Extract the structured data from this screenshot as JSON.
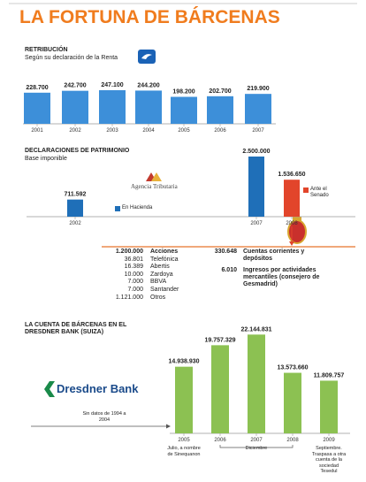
{
  "title": "LA FORTUNA DE BÁRCENAS",
  "chart_data": [
    {
      "type": "bar",
      "title": "RETRIBUCIÓN",
      "subtitle": "Según su declaración de la Renta",
      "categories": [
        "2001",
        "2002",
        "2003",
        "2004",
        "2005",
        "2006",
        "2007"
      ],
      "values": [
        228700,
        242700,
        247100,
        244200,
        198200,
        202700,
        219900
      ],
      "value_labels": [
        "228.700",
        "242.700",
        "247.100",
        "244.200",
        "198.200",
        "202.700",
        "219.900"
      ],
      "color": "#3d8fd9",
      "ylim": [
        0,
        260000
      ]
    },
    {
      "type": "bar",
      "title": "DECLARACIONES DE PATRIMONIO",
      "subtitle": "Base imponible",
      "categories": [
        "2002",
        "2007",
        "2008"
      ],
      "series": [
        {
          "name": "En Hacienda",
          "color": "#1f6fb8",
          "values": [
            711592,
            2500000,
            null
          ],
          "value_labels": [
            "711.592",
            "2.500.000",
            null
          ]
        },
        {
          "name": "Ante el Senado",
          "color": "#e2452b",
          "values": [
            null,
            null,
            1536650
          ],
          "value_labels": [
            null,
            null,
            "1.536.650"
          ]
        }
      ],
      "ylim": [
        0,
        2500000
      ],
      "logo": "Agencia Tributaria"
    },
    {
      "type": "bar",
      "title": "LA CUENTA DE BÁRCENAS EN EL DRESDNER BANK (SUIZA)",
      "categories": [
        "2005",
        "2006",
        "2007",
        "2008",
        "2009"
      ],
      "values": [
        14938930,
        19757329,
        22144831,
        13573660,
        11809757
      ],
      "value_labels": [
        "14.938.930",
        "19.757.329",
        "22.144.831",
        "13.573.660",
        "11.809.757"
      ],
      "category_notes": [
        "Julio, a nombre de Sinequanon",
        null,
        "Diciembre",
        null,
        "Septiembre. Traspasa a otra cuenta de la sociedad Tesedul"
      ],
      "color": "#8cc152",
      "ylim": [
        0,
        23000000
      ],
      "note": "Sin datos de 1994 a 2004",
      "logo": "Dresdner Bank"
    }
  ],
  "holdings": {
    "left": [
      {
        "amount": "1.200.000",
        "item": "Acciones"
      },
      {
        "amount": "36.801",
        "item": "Telefónica"
      },
      {
        "amount": "16.389",
        "item": "Abertis"
      },
      {
        "amount": "10.000",
        "item": "Zardoya"
      },
      {
        "amount": "7.000",
        "item": "BBVA"
      },
      {
        "amount": "7.000",
        "item": "Santander"
      },
      {
        "amount": "1.121.000",
        "item": "Otros"
      }
    ],
    "right": [
      {
        "amount": "330.648",
        "item": "Cuentas corrientes y depósitos"
      },
      {
        "amount": "6.010",
        "item": "Ingresos por actividades mercantiles (consejero de Gesmadrid)"
      }
    ]
  }
}
